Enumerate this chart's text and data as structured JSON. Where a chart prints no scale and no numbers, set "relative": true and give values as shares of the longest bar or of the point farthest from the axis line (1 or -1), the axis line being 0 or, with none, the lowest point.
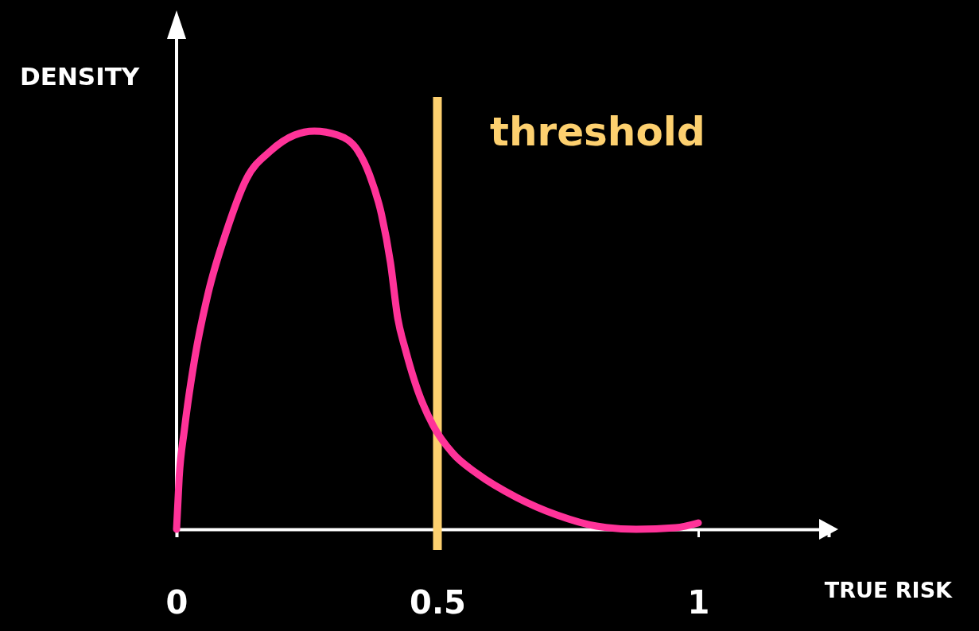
{
  "chart_data": {
    "type": "line",
    "xlabel": "TRUE RISK",
    "ylabel": "DENSITY",
    "relative": true,
    "xlim": [
      0,
      1.25
    ],
    "xticks": [
      0,
      0.5,
      1
    ],
    "grid": false,
    "legend": false,
    "marker": "none",
    "line_style": "solid",
    "x": [
      0,
      0.005,
      0.015,
      0.035,
      0.06,
      0.096,
      0.134,
      0.18,
      0.226,
      0.264,
      0.309,
      0.348,
      0.37,
      0.393,
      0.41,
      0.424,
      0.439,
      0.462,
      0.492,
      0.53,
      0.576,
      0.652,
      0.729,
      0.805,
      0.881,
      0.957,
      1
    ],
    "series": [
      {
        "color": "#ff3399",
        "values": [
          0,
          0.13,
          0.25,
          0.43,
          0.59,
          0.75,
          0.88,
          0.95,
          0.99,
          1,
          0.99,
          0.95,
          0.89,
          0.79,
          0.67,
          0.53,
          0.45,
          0.35,
          0.26,
          0.19,
          0.14,
          0.08,
          0.036,
          0.008,
          0,
          0.004,
          0.016
        ]
      }
    ],
    "ref_lines": [
      {
        "axis": "x",
        "value": 0.5,
        "label": "threshold",
        "color": "#fdd06f"
      }
    ]
  }
}
